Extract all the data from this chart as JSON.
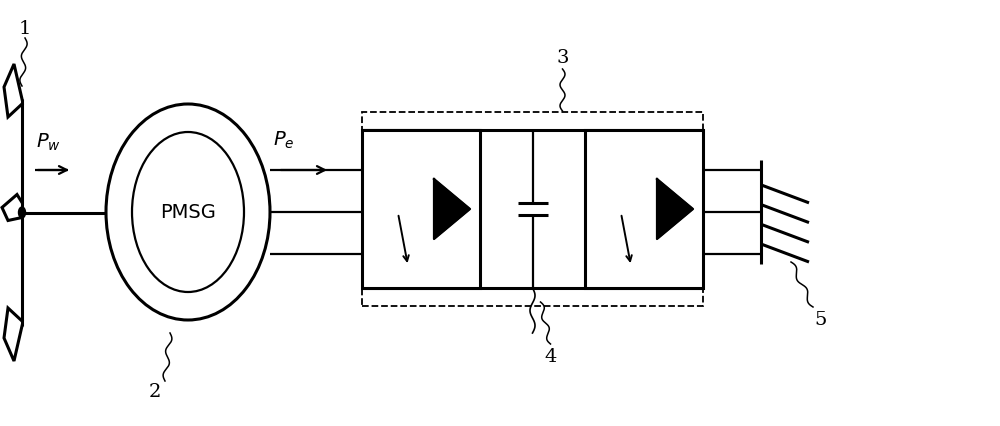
{
  "bg_color": "#ffffff",
  "line_color": "#000000",
  "fig_width": 10.0,
  "fig_height": 4.27,
  "dpi": 100,
  "lw": 1.6,
  "lw_thick": 2.2,
  "lw_thin": 1.0,
  "label_Pw": "$P_w$",
  "label_Pe": "$P_e$",
  "label_PMSG": "PMSG",
  "nums": [
    "1",
    "2",
    "3",
    "4",
    "5"
  ],
  "fontsize_main": 14,
  "fontsize_num": 14
}
